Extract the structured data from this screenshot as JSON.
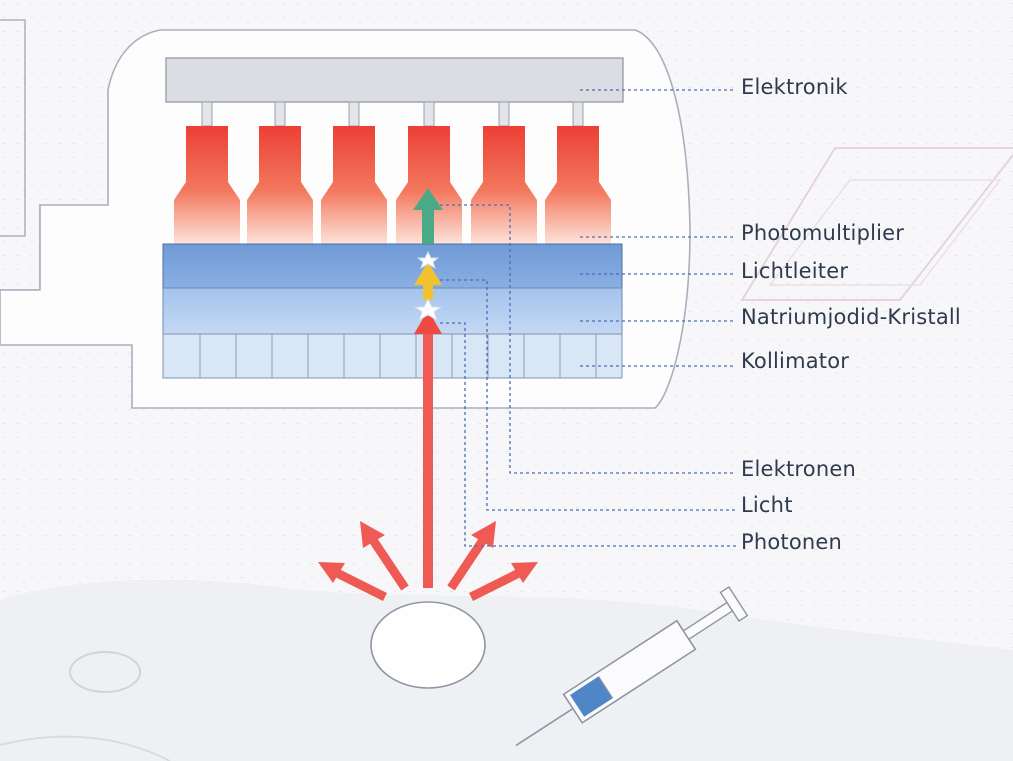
{
  "labels": {
    "elektronik": "Elektronik",
    "photomultiplier": "Photomultiplier",
    "lichtleiter": "Lichtleiter",
    "natriumjodid_kristall": "Natriumjodid-Kristall",
    "kollimator": "Kollimator",
    "elektronen": "Elektronen",
    "licht": "Licht",
    "photonen": "Photonen"
  },
  "colors": {
    "photomultiplier_tube": "#ee4a3a",
    "lichtleiter": "#5f8fd0",
    "kristall": "#93b8e8",
    "kollimator": "#d8e6f6",
    "elektronik": "#dcdde2",
    "photon_arrow": "#f05a55",
    "light_arrow": "#f2c230",
    "electron_arrow": "#4aa987",
    "syringe_fluid": "#4f86c6"
  },
  "counts": {
    "photomultiplier_tubes": 6,
    "collimator_cells": 12
  }
}
